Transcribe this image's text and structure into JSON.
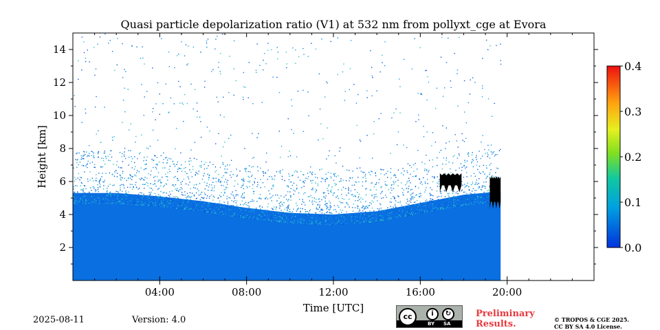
{
  "chart_data": {
    "type": "heatmap",
    "title": "Quasi particle depolarization ratio (V1) at 532 nm from pollyxt_cge at Evora",
    "xlabel": "Time [UTC]",
    "ylabel": "Height [km]",
    "xlim": [
      0,
      24
    ],
    "ylim": [
      0,
      15
    ],
    "x_ticks": [
      {
        "value": 4,
        "label": "04:00"
      },
      {
        "value": 8,
        "label": "08:00"
      },
      {
        "value": 12,
        "label": "12:00"
      },
      {
        "value": 16,
        "label": "16:00"
      },
      {
        "value": 20,
        "label": "20:00"
      }
    ],
    "y_ticks": [
      {
        "value": 2,
        "label": "2"
      },
      {
        "value": 4,
        "label": "4"
      },
      {
        "value": 6,
        "label": "6"
      },
      {
        "value": 8,
        "label": "8"
      },
      {
        "value": 10,
        "label": "10"
      },
      {
        "value": 12,
        "label": "12"
      },
      {
        "value": 14,
        "label": "14"
      }
    ],
    "colorbar": {
      "range": [
        0.0,
        0.4
      ],
      "ticks": [
        {
          "value": 0.0,
          "label": "0.0"
        },
        {
          "value": 0.1,
          "label": "0.1"
        },
        {
          "value": 0.2,
          "label": "0.2"
        },
        {
          "value": 0.3,
          "label": "0.3"
        },
        {
          "value": 0.4,
          "label": "0.4"
        }
      ]
    },
    "data_end_time": 19.7,
    "dense_layer_top_km": [
      {
        "t": 0.0,
        "h": 5.3
      },
      {
        "t": 2.0,
        "h": 5.3
      },
      {
        "t": 4.0,
        "h": 5.1
      },
      {
        "t": 6.0,
        "h": 4.8
      },
      {
        "t": 8.0,
        "h": 4.4
      },
      {
        "t": 10.0,
        "h": 4.1
      },
      {
        "t": 12.0,
        "h": 4.0
      },
      {
        "t": 14.0,
        "h": 4.2
      },
      {
        "t": 16.0,
        "h": 4.7
      },
      {
        "t": 18.0,
        "h": 5.2
      },
      {
        "t": 19.7,
        "h": 5.4
      }
    ],
    "typical_value": 0.05,
    "cloud_patches": [
      {
        "t_start": 16.9,
        "t_end": 17.9,
        "h_bottom": 5.6,
        "h_top": 6.5
      },
      {
        "t_start": 19.2,
        "t_end": 19.7,
        "h_bottom": 4.6,
        "h_top": 6.3
      }
    ]
  },
  "footer": {
    "date": "2025-08-11",
    "version": "Version: 4.0",
    "license_by": "BY",
    "license_sa": "SA",
    "cc_mark": "cc",
    "preliminary_line1": "Preliminary",
    "preliminary_line2": "Results.",
    "copyright_line1": "© TROPOS & CGE 2025.",
    "copyright_line2": "CC BY SA 4.0 License."
  }
}
